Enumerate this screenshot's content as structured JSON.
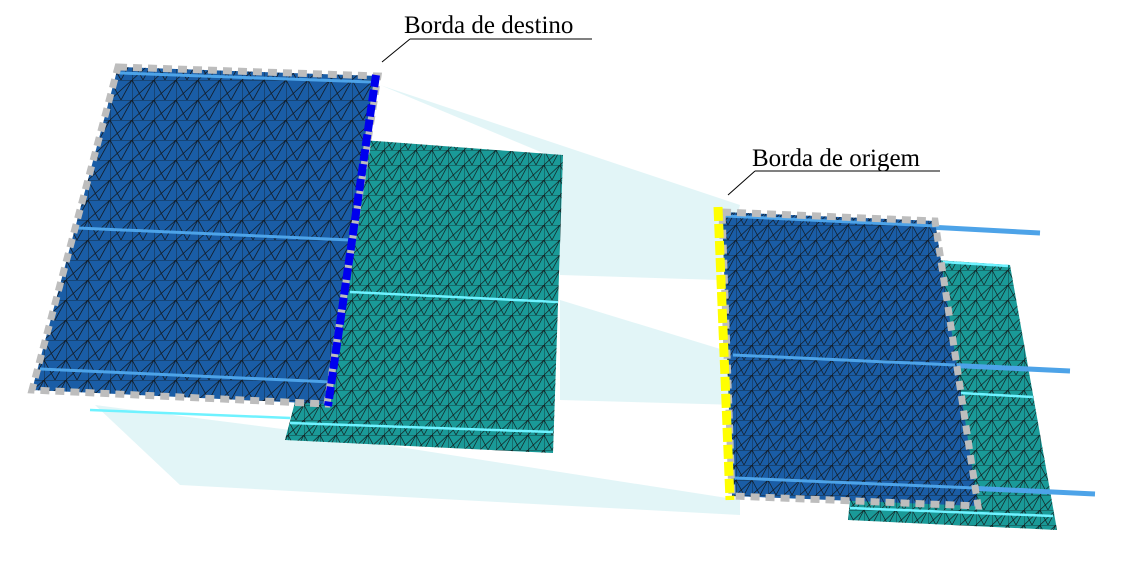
{
  "labels": {
    "target_edge": "Borda de destino",
    "source_edge": "Borda de origem"
  },
  "colors": {
    "blue_panel": "#1a5da6",
    "teal_panel": "#1a9a98",
    "projection": "#d6f1f4",
    "target_edge": "#0000ee",
    "source_edge": "#ffff00",
    "boundary_dash": "#bdbdbd",
    "seam_blue": "#4da3e8",
    "seam_cyan": "#6ff2ff"
  }
}
